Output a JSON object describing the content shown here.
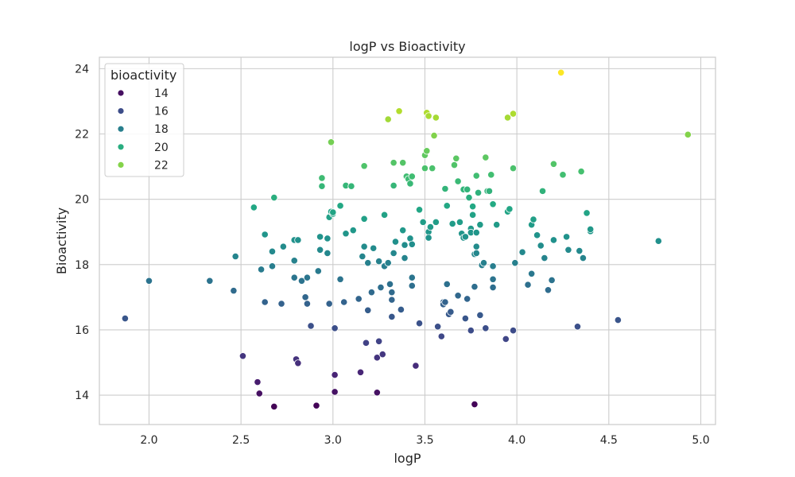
{
  "chart_data": {
    "type": "scatter",
    "title": "logP vs Bioactivity",
    "xlabel": "logP",
    "ylabel": "Bioactivity",
    "xlim": [
      1.73,
      5.08
    ],
    "ylim": [
      13.1,
      24.35
    ],
    "xticks": [
      "2.0",
      "2.5",
      "3.0",
      "3.5",
      "4.0",
      "4.5",
      "5.0"
    ],
    "xtick_values": [
      2.0,
      2.5,
      3.0,
      3.5,
      4.0,
      4.5,
      5.0
    ],
    "yticks": [
      "14",
      "16",
      "18",
      "20",
      "22",
      "24"
    ],
    "ytick_values": [
      14,
      16,
      18,
      20,
      22,
      24
    ],
    "grid": true,
    "legend": {
      "title": "bioactivity",
      "placement": "top-left",
      "entries": [
        {
          "label": "14",
          "value": 14
        },
        {
          "label": "16",
          "value": 16
        },
        {
          "label": "18",
          "value": 18
        },
        {
          "label": "20",
          "value": 20
        },
        {
          "label": "22",
          "value": 22
        }
      ]
    },
    "colormap": "viridis",
    "color_range": [
      13.6,
      23.9
    ],
    "points": [
      [
        1.87,
        16.35
      ],
      [
        2.0,
        17.5
      ],
      [
        2.33,
        17.5
      ],
      [
        2.46,
        17.2
      ],
      [
        2.47,
        18.25
      ],
      [
        2.51,
        15.2
      ],
      [
        2.57,
        19.75
      ],
      [
        2.59,
        14.4
      ],
      [
        2.6,
        14.05
      ],
      [
        2.61,
        17.85
      ],
      [
        2.63,
        18.92
      ],
      [
        2.63,
        16.85
      ],
      [
        2.67,
        18.4
      ],
      [
        2.67,
        17.95
      ],
      [
        2.68,
        13.65
      ],
      [
        2.68,
        20.05
      ],
      [
        2.72,
        16.8
      ],
      [
        2.73,
        18.55
      ],
      [
        2.79,
        17.6
      ],
      [
        2.79,
        18.75
      ],
      [
        2.79,
        18.12
      ],
      [
        2.8,
        15.1
      ],
      [
        2.81,
        14.98
      ],
      [
        2.81,
        18.75
      ],
      [
        2.83,
        17.5
      ],
      [
        2.85,
        17.0
      ],
      [
        2.86,
        17.6
      ],
      [
        2.86,
        16.8
      ],
      [
        2.88,
        16.12
      ],
      [
        2.91,
        13.68
      ],
      [
        2.92,
        17.8
      ],
      [
        2.93,
        18.45
      ],
      [
        2.93,
        18.85
      ],
      [
        2.94,
        20.4
      ],
      [
        2.94,
        20.65
      ],
      [
        2.97,
        18.8
      ],
      [
        2.97,
        18.35
      ],
      [
        2.98,
        19.45
      ],
      [
        2.98,
        16.8
      ],
      [
        2.99,
        19.62
      ],
      [
        2.99,
        21.75
      ],
      [
        3.0,
        19.55
      ],
      [
        3.0,
        19.6
      ],
      [
        3.01,
        16.05
      ],
      [
        3.01,
        14.62
      ],
      [
        3.01,
        14.1
      ],
      [
        3.04,
        19.8
      ],
      [
        3.04,
        17.55
      ],
      [
        3.06,
        16.85
      ],
      [
        3.07,
        18.95
      ],
      [
        3.07,
        20.42
      ],
      [
        3.1,
        20.4
      ],
      [
        3.11,
        19.05
      ],
      [
        3.14,
        16.95
      ],
      [
        3.15,
        14.7
      ],
      [
        3.16,
        18.25
      ],
      [
        3.17,
        18.55
      ],
      [
        3.17,
        19.4
      ],
      [
        3.17,
        21.02
      ],
      [
        3.18,
        15.6
      ],
      [
        3.19,
        16.6
      ],
      [
        3.19,
        18.05
      ],
      [
        3.21,
        17.15
      ],
      [
        3.22,
        18.5
      ],
      [
        3.24,
        14.08
      ],
      [
        3.24,
        15.15
      ],
      [
        3.25,
        15.65
      ],
      [
        3.25,
        18.1
      ],
      [
        3.26,
        17.3
      ],
      [
        3.27,
        15.25
      ],
      [
        3.28,
        17.95
      ],
      [
        3.28,
        19.52
      ],
      [
        3.3,
        22.45
      ],
      [
        3.3,
        18.05
      ],
      [
        3.31,
        17.4
      ],
      [
        3.32,
        17.15
      ],
      [
        3.32,
        16.92
      ],
      [
        3.32,
        16.4
      ],
      [
        3.33,
        18.35
      ],
      [
        3.33,
        20.42
      ],
      [
        3.33,
        21.12
      ],
      [
        3.34,
        18.7
      ],
      [
        3.36,
        22.7
      ],
      [
        3.37,
        16.62
      ],
      [
        3.38,
        21.12
      ],
      [
        3.38,
        19.05
      ],
      [
        3.39,
        18.6
      ],
      [
        3.39,
        18.2
      ],
      [
        3.4,
        20.7
      ],
      [
        3.41,
        20.62
      ],
      [
        3.42,
        20.48
      ],
      [
        3.42,
        18.8
      ],
      [
        3.43,
        18.62
      ],
      [
        3.43,
        17.6
      ],
      [
        3.43,
        17.35
      ],
      [
        3.43,
        20.7
      ],
      [
        3.45,
        14.9
      ],
      [
        3.47,
        19.68
      ],
      [
        3.47,
        16.2
      ],
      [
        3.49,
        19.3
      ],
      [
        3.5,
        21.35
      ],
      [
        3.5,
        20.95
      ],
      [
        3.51,
        22.65
      ],
      [
        3.51,
        21.48
      ],
      [
        3.52,
        22.55
      ],
      [
        3.52,
        19.0
      ],
      [
        3.52,
        18.82
      ],
      [
        3.53,
        19.15
      ],
      [
        3.54,
        20.95
      ],
      [
        3.55,
        21.95
      ],
      [
        3.56,
        22.5
      ],
      [
        3.56,
        19.3
      ],
      [
        3.57,
        16.1
      ],
      [
        3.59,
        15.8
      ],
      [
        3.6,
        16.85
      ],
      [
        3.6,
        16.78
      ],
      [
        3.61,
        16.85
      ],
      [
        3.61,
        20.32
      ],
      [
        3.62,
        19.8
      ],
      [
        3.62,
        17.4
      ],
      [
        3.63,
        16.48
      ],
      [
        3.64,
        16.55
      ],
      [
        3.65,
        19.25
      ],
      [
        3.66,
        21.05
      ],
      [
        3.67,
        21.25
      ],
      [
        3.68,
        17.05
      ],
      [
        3.68,
        20.55
      ],
      [
        3.69,
        19.3
      ],
      [
        3.7,
        18.95
      ],
      [
        3.71,
        18.82
      ],
      [
        3.71,
        20.3
      ],
      [
        3.72,
        16.35
      ],
      [
        3.72,
        18.85
      ],
      [
        3.73,
        16.95
      ],
      [
        3.73,
        20.3
      ],
      [
        3.74,
        20.05
      ],
      [
        3.75,
        15.98
      ],
      [
        3.75,
        19.1
      ],
      [
        3.75,
        18.98
      ],
      [
        3.76,
        19.52
      ],
      [
        3.76,
        19.78
      ],
      [
        3.77,
        13.72
      ],
      [
        3.77,
        17.32
      ],
      [
        3.77,
        18.32
      ],
      [
        3.78,
        18.55
      ],
      [
        3.78,
        18.35
      ],
      [
        3.78,
        20.72
      ],
      [
        3.78,
        18.98
      ],
      [
        3.79,
        20.2
      ],
      [
        3.8,
        19.22
      ],
      [
        3.8,
        16.45
      ],
      [
        3.81,
        17.98
      ],
      [
        3.82,
        18.05
      ],
      [
        3.83,
        21.28
      ],
      [
        3.83,
        16.05
      ],
      [
        3.84,
        20.25
      ],
      [
        3.85,
        20.25
      ],
      [
        3.86,
        20.75
      ],
      [
        3.87,
        19.85
      ],
      [
        3.87,
        17.3
      ],
      [
        3.87,
        17.55
      ],
      [
        3.87,
        17.95
      ],
      [
        3.89,
        19.22
      ],
      [
        3.94,
        15.72
      ],
      [
        3.95,
        19.62
      ],
      [
        3.95,
        22.5
      ],
      [
        3.96,
        19.7
      ],
      [
        3.98,
        22.62
      ],
      [
        3.98,
        15.98
      ],
      [
        3.98,
        20.95
      ],
      [
        3.99,
        18.05
      ],
      [
        4.03,
        18.38
      ],
      [
        4.06,
        17.38
      ],
      [
        4.08,
        19.22
      ],
      [
        4.08,
        17.72
      ],
      [
        4.09,
        19.38
      ],
      [
        4.11,
        18.9
      ],
      [
        4.13,
        18.58
      ],
      [
        4.14,
        20.25
      ],
      [
        4.15,
        18.2
      ],
      [
        4.17,
        17.22
      ],
      [
        4.19,
        17.52
      ],
      [
        4.2,
        18.75
      ],
      [
        4.2,
        21.08
      ],
      [
        4.24,
        23.88
      ],
      [
        4.25,
        20.75
      ],
      [
        4.27,
        18.85
      ],
      [
        4.28,
        18.45
      ],
      [
        4.33,
        16.1
      ],
      [
        4.34,
        18.42
      ],
      [
        4.35,
        20.85
      ],
      [
        4.36,
        18.2
      ],
      [
        4.38,
        19.58
      ],
      [
        4.4,
        19.02
      ],
      [
        4.4,
        19.08
      ],
      [
        4.55,
        16.3
      ],
      [
        4.77,
        18.72
      ],
      [
        4.93,
        21.98
      ]
    ]
  }
}
